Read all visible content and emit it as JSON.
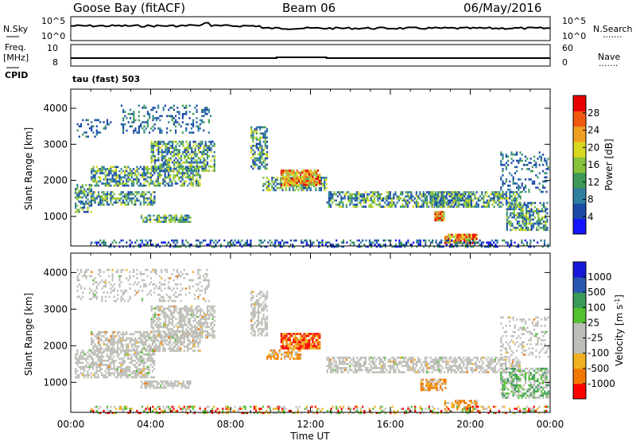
{
  "header": {
    "station": "Goose Bay (fitACF)",
    "beam": "Beam 06",
    "date": "06/May/2016"
  },
  "side_labels": {
    "nsky": "N.Sky",
    "freq_line1": "Freq.",
    "freq_line2": "[MHz]",
    "cpid": "CPID",
    "nsearch": "N.Search",
    "nave": "Nave",
    "dots": "......."
  },
  "strip_ticks": {
    "noise_top": "10^5",
    "noise_bottom": "10^0",
    "noise_right_top": "10^5",
    "noise_right_bottom": "10^0",
    "freq_top": "10",
    "freq_bottom": "8",
    "nave_top": "60",
    "nave_bottom": "0"
  },
  "cpid_text": "tau (fast) 503",
  "colors": {
    "power_scale": [
      "#1414ff",
      "#1a4aa8",
      "#2f7fa0",
      "#3f9a5a",
      "#86c23a",
      "#d8d820",
      "#f0a020",
      "#f05a10",
      "#e80000"
    ],
    "velocity_scale": [
      "#ff0000",
      "#f07800",
      "#f0b020",
      "#bebeb8",
      "#bebeb8",
      "#54c030",
      "#3a9a5a",
      "#2a58b0",
      "#1818d8"
    ],
    "gray_scatter": "#bebeb8"
  },
  "chart_data": [
    {
      "type": "heatmap",
      "name": "power",
      "ylabel": "Slant Range [km]",
      "x_ticks": [
        "00:00",
        "04:00",
        "08:00",
        "12:00",
        "16:00",
        "20:00",
        "00:00"
      ],
      "xlim_hours": [
        0,
        24
      ],
      "y_ticks": [
        "1000",
        "2000",
        "3000",
        "4000"
      ],
      "ylim_km": [
        180,
        4530
      ],
      "colorbar": {
        "label": "Power [dB]",
        "ticks": [
          "4",
          "8",
          "12",
          "16",
          "20",
          "24",
          "28"
        ],
        "range": [
          0,
          32
        ]
      },
      "regions": [
        {
          "t0": 0.2,
          "t1": 1.0,
          "r0": 1150,
          "r1": 1900,
          "kind": "wide"
        },
        {
          "t0": 1.0,
          "t1": 4.2,
          "r0": 1300,
          "r1": 1700,
          "kind": "band"
        },
        {
          "t0": 1.0,
          "t1": 6.5,
          "r0": 1850,
          "r1": 2400,
          "kind": "band"
        },
        {
          "t0": 4.0,
          "t1": 7.2,
          "r0": 2250,
          "r1": 3100,
          "kind": "band"
        },
        {
          "t0": 0.3,
          "t1": 2.0,
          "r0": 3200,
          "r1": 3700,
          "kind": "sparse"
        },
        {
          "t0": 2.5,
          "t1": 7.0,
          "r0": 3300,
          "r1": 4100,
          "kind": "sparse"
        },
        {
          "t0": 3.5,
          "t1": 6.0,
          "r0": 850,
          "r1": 1050,
          "kind": "band"
        },
        {
          "t0": 9.0,
          "t1": 9.8,
          "r0": 2300,
          "r1": 3500,
          "kind": "band"
        },
        {
          "t0": 9.6,
          "t1": 12.8,
          "r0": 1700,
          "r1": 2100,
          "kind": "band"
        },
        {
          "t0": 10.5,
          "t1": 12.5,
          "r0": 1850,
          "r1": 2300,
          "kind": "hot"
        },
        {
          "t0": 12.8,
          "t1": 20.0,
          "r0": 1250,
          "r1": 1700,
          "kind": "band"
        },
        {
          "t0": 18.0,
          "t1": 22.5,
          "r0": 1250,
          "r1": 1700,
          "kind": "wide"
        },
        {
          "t0": 18.2,
          "t1": 18.7,
          "r0": 900,
          "r1": 1150,
          "kind": "hot"
        },
        {
          "t0": 18.7,
          "t1": 20.3,
          "r0": 280,
          "r1": 520,
          "kind": "hot"
        },
        {
          "t0": 21.8,
          "t1": 23.9,
          "r0": 600,
          "r1": 1400,
          "kind": "wide"
        },
        {
          "t0": 21.5,
          "t1": 23.9,
          "r0": 1700,
          "r1": 2800,
          "kind": "sparse"
        },
        {
          "t0": 1.0,
          "t1": 23.9,
          "r0": 180,
          "r1": 360,
          "kind": "floor"
        }
      ]
    },
    {
      "type": "heatmap",
      "name": "velocity",
      "ylabel": "Slant Range [km]",
      "xlabel": "Time UT",
      "x_ticks": [
        "00:00",
        "04:00",
        "08:00",
        "12:00",
        "16:00",
        "20:00",
        "00:00"
      ],
      "xlim_hours": [
        0,
        24
      ],
      "y_ticks": [
        "1000",
        "2000",
        "3000",
        "4000"
      ],
      "ylim_km": [
        180,
        4530
      ],
      "colorbar": {
        "label": "Velocity [m s-1]",
        "ticks": [
          "1000",
          "500",
          "100",
          "25",
          "-25",
          "-100",
          "-500",
          "-1000"
        ]
      },
      "regions": [
        {
          "t0": 0.2,
          "t1": 4.2,
          "r0": 1150,
          "r1": 1900,
          "kind": "gray"
        },
        {
          "t0": 1.0,
          "t1": 6.5,
          "r0": 1850,
          "r1": 2400,
          "kind": "gray"
        },
        {
          "t0": 4.0,
          "t1": 7.2,
          "r0": 2250,
          "r1": 3100,
          "kind": "gray"
        },
        {
          "t0": 0.3,
          "t1": 7.0,
          "r0": 3200,
          "r1": 4100,
          "kind": "graysparse"
        },
        {
          "t0": 3.5,
          "t1": 6.0,
          "r0": 850,
          "r1": 1050,
          "kind": "gray"
        },
        {
          "t0": 9.0,
          "t1": 9.8,
          "r0": 2300,
          "r1": 3500,
          "kind": "gray"
        },
        {
          "t0": 10.5,
          "t1": 12.5,
          "r0": 1950,
          "r1": 2350,
          "kind": "redblob"
        },
        {
          "t0": 9.8,
          "t1": 11.5,
          "r0": 1650,
          "r1": 1900,
          "kind": "orange"
        },
        {
          "t0": 12.8,
          "t1": 22.5,
          "r0": 1250,
          "r1": 1700,
          "kind": "gray"
        },
        {
          "t0": 17.5,
          "t1": 18.8,
          "r0": 800,
          "r1": 1100,
          "kind": "orange"
        },
        {
          "t0": 18.7,
          "t1": 20.3,
          "r0": 280,
          "r1": 520,
          "kind": "orange"
        },
        {
          "t0": 21.5,
          "t1": 23.9,
          "r0": 600,
          "r1": 1400,
          "kind": "graygreen"
        },
        {
          "t0": 21.5,
          "t1": 23.9,
          "r0": 1700,
          "r1": 2800,
          "kind": "graysparse"
        },
        {
          "t0": 1.0,
          "t1": 23.9,
          "r0": 180,
          "r1": 360,
          "kind": "floor"
        }
      ]
    }
  ]
}
